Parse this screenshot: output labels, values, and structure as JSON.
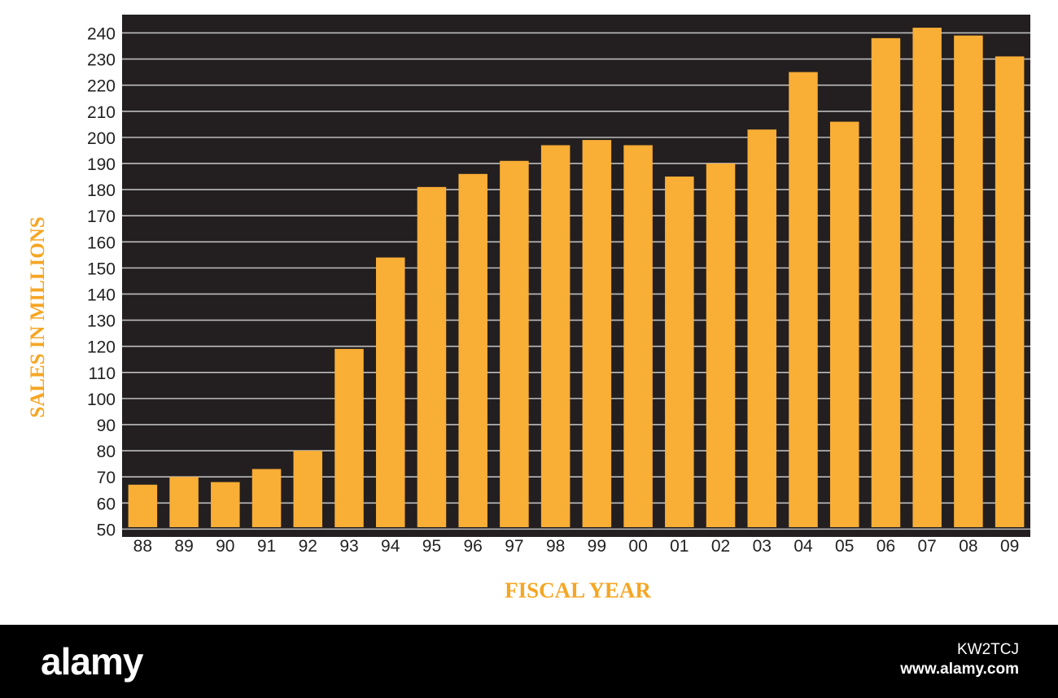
{
  "chart_data": {
    "type": "bar",
    "xlabel": "FISCAL YEAR",
    "ylabel": "SALES IN MILLIONS",
    "categories": [
      "88",
      "89",
      "90",
      "91",
      "92",
      "93",
      "94",
      "95",
      "96",
      "97",
      "98",
      "99",
      "00",
      "01",
      "02",
      "03",
      "04",
      "05",
      "06",
      "07",
      "08",
      "09"
    ],
    "values": [
      67,
      70,
      68,
      73,
      80,
      119,
      154,
      181,
      186,
      191,
      197,
      199,
      197,
      185,
      190,
      203,
      225,
      206,
      238,
      242,
      239,
      231
    ],
    "ylim": [
      47,
      247
    ],
    "yticks": [
      50,
      60,
      70,
      80,
      90,
      100,
      110,
      120,
      130,
      140,
      150,
      160,
      170,
      180,
      190,
      200,
      210,
      220,
      230,
      240
    ],
    "grid": true,
    "colors": {
      "background": "#231f20",
      "bar": "#f9ae35",
      "grid": "#bdbdbd",
      "label": "#f5a623"
    }
  },
  "footer": {
    "brand": "alamy",
    "image_code": "KW2TCJ",
    "site": "www.alamy.com"
  }
}
